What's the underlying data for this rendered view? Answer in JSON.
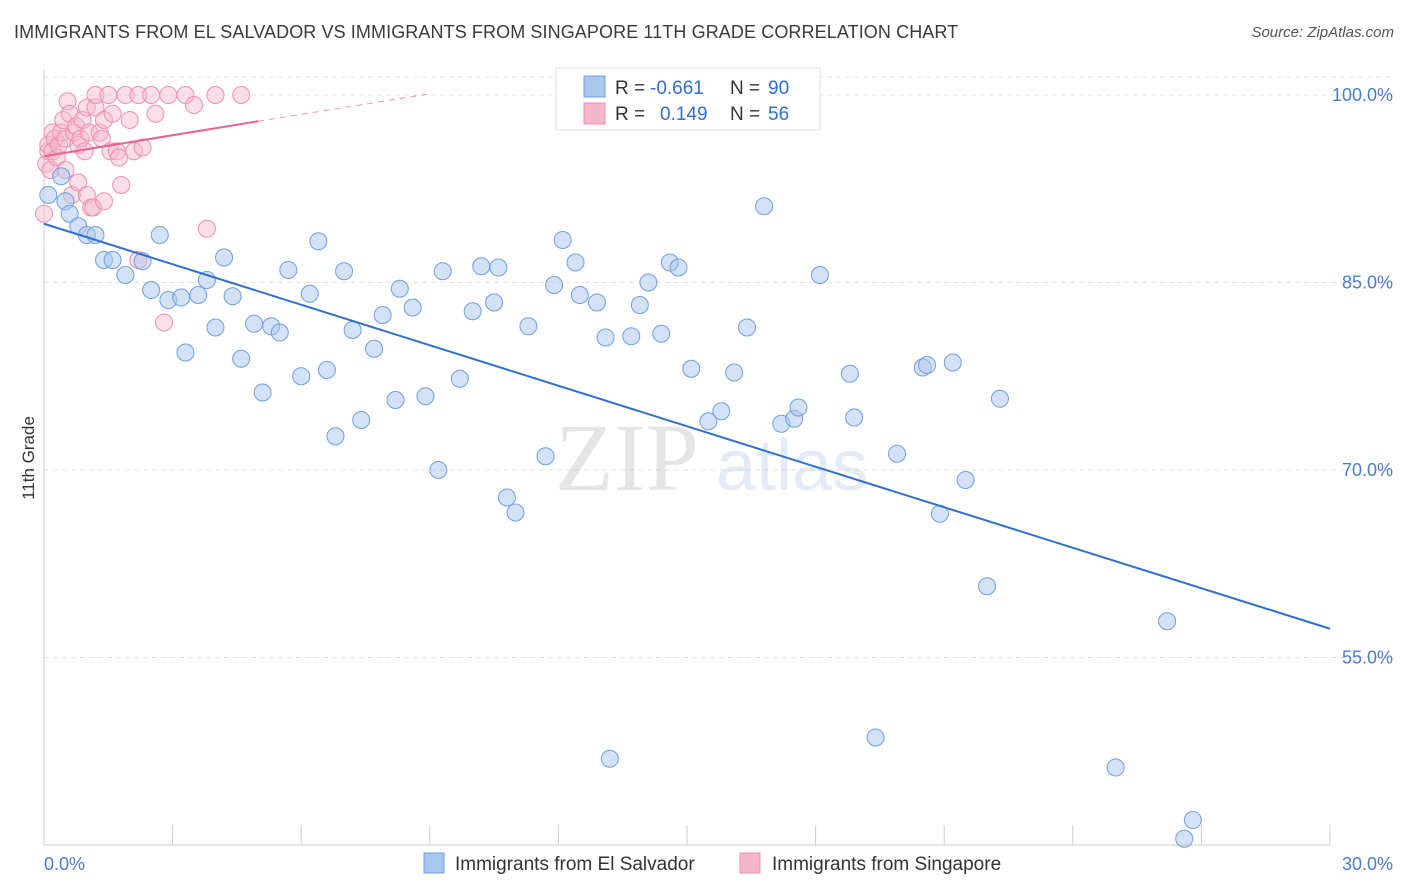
{
  "title": "IMMIGRANTS FROM EL SALVADOR VS IMMIGRANTS FROM SINGAPORE 11TH GRADE CORRELATION CHART",
  "source": "Source: ZipAtlas.com",
  "watermark": {
    "zip": "ZIP",
    "atlas": "atlas"
  },
  "colors": {
    "blue_fill": "#a9c6ef",
    "blue_stroke": "#6f9fe0",
    "blue_line": "#2e6fd1",
    "pink_fill": "#f6b7cc",
    "pink_stroke": "#ee8fb0",
    "pink_line": "#e8638e",
    "grid": "#dddddd",
    "tick_label": "#4a7cc9"
  },
  "legend": {
    "rows": [
      {
        "r_label": "R =",
        "r_value": "-0.661",
        "n_label": "N =",
        "n_value": "90"
      },
      {
        "r_label": "R =",
        "r_value": "0.149",
        "n_label": "N =",
        "n_value": "56"
      }
    ]
  },
  "chart_data": {
    "type": "scatter",
    "title": "IMMIGRANTS FROM EL SALVADOR VS IMMIGRANTS FROM SINGAPORE 11TH GRADE CORRELATION CHART",
    "xlabel": "",
    "ylabel": "11th Grade",
    "xlim": [
      0,
      30
    ],
    "ylim": [
      40,
      102
    ],
    "x_tick_labels": [
      "0.0%",
      "30.0%"
    ],
    "y_tick_labels": [
      "100.0%",
      "85.0%",
      "70.0%",
      "55.0%"
    ],
    "y_ticks": [
      100,
      85,
      70,
      55
    ],
    "grid": true,
    "legend_position": "bottom",
    "series": [
      {
        "name": "Immigrants from El Salvador",
        "color": "#a9c6ef",
        "trend": {
          "x": [
            0,
            30
          ],
          "y": [
            89.7,
            57.3
          ]
        },
        "points": [
          [
            0.1,
            92.0
          ],
          [
            0.4,
            93.5
          ],
          [
            0.5,
            91.5
          ],
          [
            0.6,
            90.5
          ],
          [
            0.8,
            89.5
          ],
          [
            1.0,
            88.8
          ],
          [
            1.2,
            88.8
          ],
          [
            1.4,
            86.8
          ],
          [
            1.6,
            86.8
          ],
          [
            1.9,
            85.6
          ],
          [
            2.3,
            86.7
          ],
          [
            2.5,
            84.4
          ],
          [
            2.7,
            88.8
          ],
          [
            2.9,
            83.6
          ],
          [
            3.2,
            83.8
          ],
          [
            3.3,
            79.4
          ],
          [
            3.6,
            84.0
          ],
          [
            3.8,
            85.2
          ],
          [
            4.0,
            81.4
          ],
          [
            4.2,
            87.0
          ],
          [
            4.4,
            83.9
          ],
          [
            4.6,
            78.9
          ],
          [
            4.9,
            81.7
          ],
          [
            5.1,
            76.2
          ],
          [
            5.3,
            81.5
          ],
          [
            5.5,
            81.0
          ],
          [
            5.7,
            86.0
          ],
          [
            6.0,
            77.5
          ],
          [
            6.2,
            84.1
          ],
          [
            6.4,
            88.3
          ],
          [
            6.6,
            78.0
          ],
          [
            6.8,
            72.7
          ],
          [
            7.0,
            85.9
          ],
          [
            7.2,
            81.2
          ],
          [
            7.4,
            74.0
          ],
          [
            7.7,
            79.7
          ],
          [
            7.9,
            82.4
          ],
          [
            8.2,
            75.6
          ],
          [
            8.3,
            84.5
          ],
          [
            8.6,
            83.0
          ],
          [
            8.9,
            75.9
          ],
          [
            9.2,
            70.0
          ],
          [
            9.3,
            85.9
          ],
          [
            9.7,
            77.3
          ],
          [
            10.0,
            82.7
          ],
          [
            10.2,
            86.3
          ],
          [
            10.5,
            83.4
          ],
          [
            10.6,
            86.2
          ],
          [
            10.8,
            67.8
          ],
          [
            11.0,
            66.6
          ],
          [
            11.3,
            81.5
          ],
          [
            11.7,
            71.1
          ],
          [
            11.9,
            84.8
          ],
          [
            12.1,
            88.4
          ],
          [
            12.4,
            86.6
          ],
          [
            12.5,
            84.0
          ],
          [
            12.9,
            83.4
          ],
          [
            13.1,
            80.6
          ],
          [
            13.2,
            46.9
          ],
          [
            13.7,
            80.7
          ],
          [
            13.9,
            83.2
          ],
          [
            14.1,
            85.0
          ],
          [
            14.4,
            80.9
          ],
          [
            14.6,
            86.6
          ],
          [
            14.8,
            86.2
          ],
          [
            15.1,
            78.1
          ],
          [
            15.5,
            73.9
          ],
          [
            15.8,
            74.7
          ],
          [
            16.1,
            77.8
          ],
          [
            16.4,
            81.4
          ],
          [
            16.8,
            91.1
          ],
          [
            17.2,
            73.7
          ],
          [
            17.5,
            74.1
          ],
          [
            17.6,
            75.0
          ],
          [
            18.1,
            85.6
          ],
          [
            18.8,
            77.7
          ],
          [
            18.9,
            74.2
          ],
          [
            19.4,
            48.6
          ],
          [
            19.9,
            71.3
          ],
          [
            20.5,
            78.2
          ],
          [
            20.6,
            78.4
          ],
          [
            20.9,
            66.5
          ],
          [
            21.2,
            78.6
          ],
          [
            21.5,
            69.2
          ],
          [
            22.0,
            60.7
          ],
          [
            22.3,
            75.7
          ],
          [
            25.0,
            46.2
          ],
          [
            26.2,
            57.9
          ],
          [
            26.6,
            40.5
          ],
          [
            26.8,
            42.0
          ]
        ]
      },
      {
        "name": "Immigrants from Singapore",
        "color": "#f6b7cc",
        "trend": {
          "x": [
            0,
            5.0
          ],
          "y": [
            95.1,
            97.9
          ],
          "dashed_extension": {
            "x": [
              5.0,
              9.0
            ],
            "y": [
              97.9,
              100.1
            ]
          }
        },
        "points": [
          [
            0.0,
            90.5
          ],
          [
            0.05,
            94.5
          ],
          [
            0.1,
            95.5
          ],
          [
            0.1,
            96.0
          ],
          [
            0.15,
            94.0
          ],
          [
            0.2,
            95.5
          ],
          [
            0.2,
            97.0
          ],
          [
            0.25,
            96.5
          ],
          [
            0.3,
            95.0
          ],
          [
            0.35,
            96.0
          ],
          [
            0.4,
            97.0
          ],
          [
            0.45,
            98.0
          ],
          [
            0.5,
            96.5
          ],
          [
            0.5,
            94.0
          ],
          [
            0.55,
            99.5
          ],
          [
            0.6,
            98.5
          ],
          [
            0.65,
            92.0
          ],
          [
            0.7,
            97.0
          ],
          [
            0.75,
            97.5
          ],
          [
            0.8,
            96.0
          ],
          [
            0.8,
            93.0
          ],
          [
            0.85,
            96.5
          ],
          [
            0.9,
            98.0
          ],
          [
            0.95,
            95.5
          ],
          [
            1.0,
            92.0
          ],
          [
            1.0,
            99.0
          ],
          [
            1.05,
            97.0
          ],
          [
            1.1,
            91.0
          ],
          [
            1.15,
            91.0
          ],
          [
            1.2,
            99.0
          ],
          [
            1.2,
            100.0
          ],
          [
            1.3,
            97.0
          ],
          [
            1.35,
            96.5
          ],
          [
            1.4,
            91.5
          ],
          [
            1.4,
            98.0
          ],
          [
            1.5,
            100.0
          ],
          [
            1.55,
            95.5
          ],
          [
            1.6,
            98.5
          ],
          [
            1.7,
            95.5
          ],
          [
            1.75,
            95.0
          ],
          [
            1.8,
            92.8
          ],
          [
            1.9,
            100.0
          ],
          [
            2.0,
            98.0
          ],
          [
            2.1,
            95.5
          ],
          [
            2.2,
            86.8
          ],
          [
            2.2,
            100.0
          ],
          [
            2.3,
            95.8
          ],
          [
            2.5,
            100.0
          ],
          [
            2.6,
            98.5
          ],
          [
            2.8,
            81.8
          ],
          [
            2.9,
            100.0
          ],
          [
            3.3,
            100.0
          ],
          [
            3.5,
            99.2
          ],
          [
            3.8,
            89.3
          ],
          [
            4.0,
            100.0
          ],
          [
            4.6,
            100.0
          ]
        ]
      }
    ]
  },
  "bottom_legend": [
    {
      "label": "Immigrants from El Salvador"
    },
    {
      "label": "Immigrants from Singapore"
    }
  ]
}
